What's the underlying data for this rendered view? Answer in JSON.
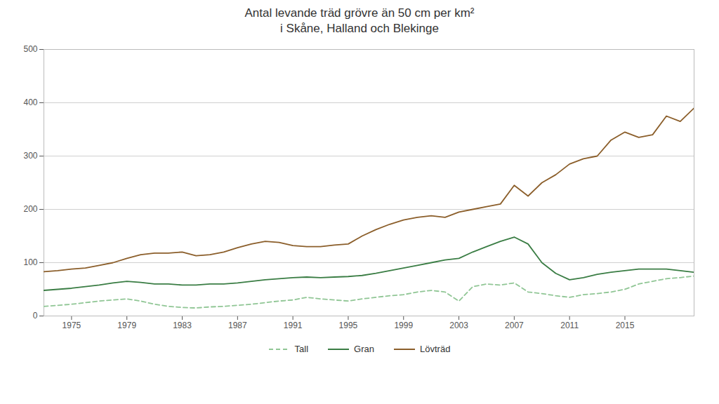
{
  "chart_data": {
    "type": "line",
    "title": "Antal levande träd grövre än 50 cm per km²",
    "subtitle": "i Skåne, Halland och Blekinge",
    "x": [
      1973,
      1974,
      1975,
      1976,
      1977,
      1978,
      1979,
      1980,
      1981,
      1982,
      1983,
      1984,
      1985,
      1986,
      1987,
      1988,
      1989,
      1990,
      1991,
      1992,
      1993,
      1994,
      1995,
      1996,
      1997,
      1998,
      1999,
      2000,
      2001,
      2002,
      2003,
      2004,
      2005,
      2006,
      2007,
      2008,
      2009,
      2010,
      2011,
      2012,
      2013,
      2014,
      2015,
      2016,
      2017,
      2018,
      2019,
      2020
    ],
    "series": [
      {
        "name": "Tall",
        "color": "#90c695",
        "line_style": "dashed",
        "values": [
          18,
          20,
          22,
          25,
          28,
          30,
          32,
          28,
          22,
          18,
          16,
          15,
          17,
          18,
          20,
          22,
          25,
          28,
          30,
          35,
          32,
          30,
          28,
          32,
          35,
          38,
          40,
          45,
          48,
          45,
          28,
          55,
          60,
          58,
          62,
          45,
          42,
          38,
          35,
          40,
          42,
          45,
          50,
          60,
          65,
          70,
          72,
          75
        ]
      },
      {
        "name": "Gran",
        "color": "#3a7d44",
        "line_style": "solid",
        "values": [
          48,
          50,
          52,
          55,
          58,
          62,
          65,
          63,
          60,
          60,
          58,
          58,
          60,
          60,
          62,
          65,
          68,
          70,
          72,
          73,
          72,
          73,
          74,
          76,
          80,
          85,
          90,
          95,
          100,
          105,
          108,
          120,
          130,
          140,
          148,
          135,
          100,
          80,
          68,
          72,
          78,
          82,
          85,
          88,
          88,
          88,
          85,
          82
        ]
      },
      {
        "name": "Lövträd",
        "color": "#8b5e2a",
        "line_style": "solid",
        "values": [
          83,
          85,
          88,
          90,
          95,
          100,
          108,
          115,
          118,
          118,
          120,
          113,
          115,
          120,
          128,
          135,
          140,
          138,
          132,
          130,
          130,
          133,
          135,
          150,
          162,
          172,
          180,
          185,
          188,
          185,
          195,
          200,
          205,
          210,
          245,
          225,
          250,
          265,
          285,
          295,
          300,
          330,
          345,
          335,
          340,
          375,
          365,
          390
        ]
      }
    ],
    "xlim": [
      1973,
      2020
    ],
    "xticks": [
      1975,
      1979,
      1983,
      1987,
      1991,
      1995,
      1999,
      2003,
      2007,
      2011,
      2015
    ],
    "ylim": [
      0,
      500
    ],
    "yticks": [
      0,
      100,
      200,
      300,
      400,
      500
    ],
    "grid": true,
    "legend": "bottom"
  }
}
